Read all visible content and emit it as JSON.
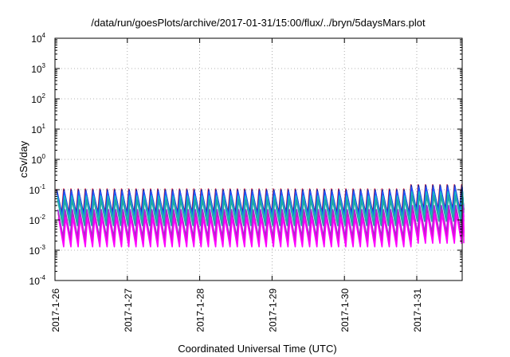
{
  "chart_data": {
    "type": "line",
    "title": "/data/run/goesPlots/archive/2017-01-31/15:00/flux/../bryn/5daysMars.plot",
    "xlabel": "Coordinated Universal Time (UTC)",
    "ylabel": "cSv/day",
    "yscale": "log",
    "ylim": [
      0.0001,
      10000
    ],
    "y_ticks": [
      {
        "base": "10",
        "exp": "-4",
        "value": 0.0001
      },
      {
        "base": "10",
        "exp": "-3",
        "value": 0.001
      },
      {
        "base": "10",
        "exp": "-2",
        "value": 0.01
      },
      {
        "base": "10",
        "exp": "-1",
        "value": 0.1
      },
      {
        "base": "10",
        "exp": "0",
        "value": 1
      },
      {
        "base": "10",
        "exp": "1",
        "value": 10
      },
      {
        "base": "10",
        "exp": "2",
        "value": 100
      },
      {
        "base": "10",
        "exp": "3",
        "value": 1000
      },
      {
        "base": "10",
        "exp": "4",
        "value": 10000
      }
    ],
    "x_ticks": [
      "2017-1-26",
      "2017-1-27",
      "2017-1-28",
      "2017-1-29",
      "2017-1-30",
      "2017-1-31"
    ],
    "xlim": [
      "2017-01-26T00:00",
      "2017-01-31T15:00"
    ],
    "grid": true,
    "sawtooth": {
      "cycles_per_day": 10,
      "days": 5.65,
      "step_after": "2017-01-30T22:00",
      "series": [
        {
          "color": "#ff2020",
          "peak": 0.105,
          "trough": 0.0165,
          "peak_late": 0.145,
          "trough_late": 0.022
        },
        {
          "color": "#1a2aa8",
          "peak": 0.1,
          "trough": 0.0155,
          "peak_late": 0.14,
          "trough_late": 0.021
        },
        {
          "color": "#2255ff",
          "peak": 0.085,
          "trough": 0.0125,
          "peak_late": 0.118,
          "trough_late": 0.0175
        },
        {
          "color": "#17b8c8",
          "peak": 0.062,
          "trough": 0.009,
          "peak_late": 0.085,
          "trough_late": 0.0125
        },
        {
          "color": "#21a7a0",
          "peak": 0.046,
          "trough": 0.0065,
          "peak_late": 0.063,
          "trough_late": 0.009
        },
        {
          "color": "#9a2fd6",
          "peak": 0.022,
          "trough": 0.0027,
          "peak_late": 0.03,
          "trough_late": 0.0038
        },
        {
          "color": "#c21fc6",
          "peak": 0.017,
          "trough": 0.002,
          "peak_late": 0.023,
          "trough_late": 0.0028
        },
        {
          "color": "#ff00ff",
          "peak": 0.012,
          "trough": 0.0013,
          "peak_late": 0.016,
          "trough_late": 0.0017
        }
      ]
    }
  }
}
